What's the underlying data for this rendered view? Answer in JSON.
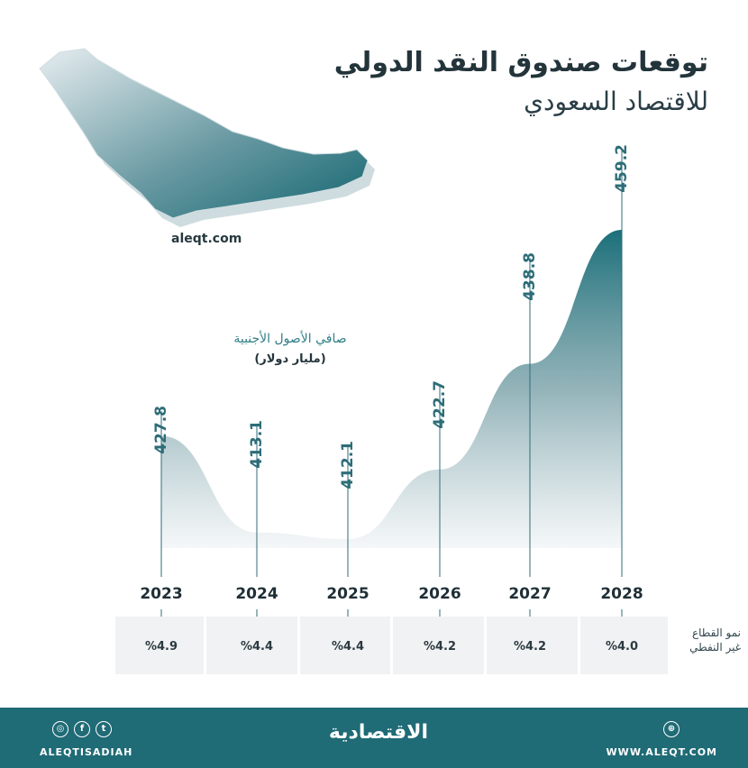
{
  "header": {
    "title": "توقعات صندوق النقد الدولي",
    "subtitle": "للاقتصاد السعودي",
    "site": "aleqt.com"
  },
  "chart_data": {
    "type": "area",
    "title": "توقعات صندوق النقد الدولي",
    "subtitle": "للاقتصاد السعودي",
    "ylabel": "صافي الأصول الأجنبية",
    "yunit": "(مليار دولار)",
    "x": [
      "2023",
      "2024",
      "2025",
      "2026",
      "2027",
      "2028"
    ],
    "series": [
      {
        "name": "صافي الأصول الأجنبية",
        "values": [
          427.8,
          413.1,
          412.1,
          422.7,
          438.8,
          459.2
        ]
      }
    ],
    "value_labels": [
      "427.8",
      "413.1",
      "412.1",
      "422.7",
      "438.8",
      "459.2"
    ],
    "row": {
      "label_line1": "نمو القطاع",
      "label_line2": "غير النفطي",
      "values": [
        "%4.9",
        "%4.4",
        "%4.4",
        "%4.2",
        "%4.2",
        "%4.0"
      ]
    },
    "ylim": [
      400,
      460
    ],
    "grid": false,
    "colors": {
      "accent": "#1b6f7a",
      "line": "#2d6d78",
      "footer": "#1f6b76"
    }
  },
  "footer": {
    "left_handle": "ALEQTISADIAH",
    "brand": "الاقتصادية",
    "right_url": "WWW.ALEQT.COM",
    "icons": [
      "instagram-icon",
      "facebook-icon",
      "twitter-icon",
      "globe-icon"
    ]
  }
}
